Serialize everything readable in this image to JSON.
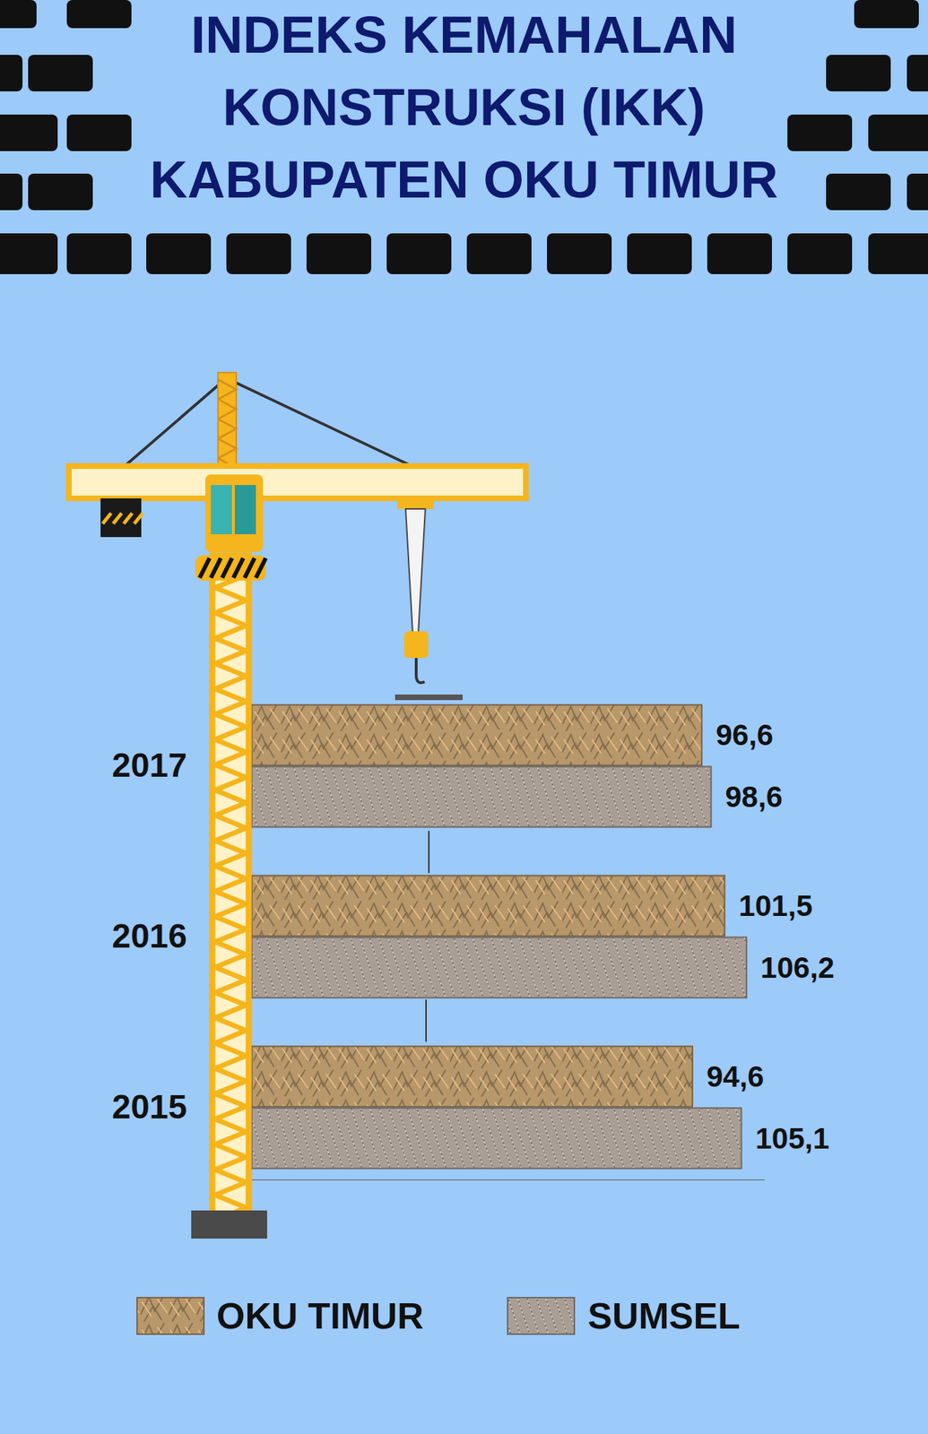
{
  "chart_data": {
    "type": "bar",
    "title": "INDEKS KEMAHALAN\nKONSTRUKSI (IKK)\nKABUPATEN OKU TIMUR",
    "orientation": "horizontal",
    "categories": [
      "2017",
      "2016",
      "2015"
    ],
    "series": [
      {
        "name": "OKU TIMUR",
        "color": "#b8976a",
        "values": [
          96.6,
          101.5,
          94.6
        ],
        "value_labels": [
          "96,6",
          "101,5",
          "94,6"
        ]
      },
      {
        "name": "SUMSEL",
        "color": "#a99e95",
        "values": [
          98.6,
          106.2,
          105.1
        ],
        "value_labels": [
          "98,6",
          "106,2",
          "105,1"
        ]
      }
    ],
    "xlim": [
      0,
      110
    ],
    "data_labels": true,
    "tick_labels": "y",
    "legend": "bottom",
    "grid": false
  }
}
